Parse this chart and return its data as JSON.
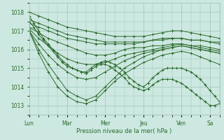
{
  "background_color": "#cce8e0",
  "grid_color": "#a0c4bc",
  "line_color": "#2d6a2d",
  "marker": "+",
  "markersize": 3,
  "linewidth": 0.7,
  "xlabel": "Pression niveau de la mer( hPa )",
  "ylim": [
    1012.5,
    1018.5
  ],
  "yticks": [
    1013,
    1014,
    1015,
    1016,
    1017,
    1018
  ],
  "xtick_labels": [
    "Lun",
    "Mar",
    "Mer",
    "Jeu",
    "Ven",
    "Sa"
  ],
  "xtick_positions": [
    0,
    24,
    48,
    72,
    96,
    114
  ],
  "total_hours": 120,
  "series": [
    {
      "x": [
        0,
        6,
        12,
        18,
        24,
        30,
        36,
        42,
        48,
        54,
        60,
        66,
        72,
        78,
        84,
        90,
        96,
        102,
        108,
        114,
        120
      ],
      "y": [
        1018.0,
        1017.8,
        1017.6,
        1017.4,
        1017.2,
        1017.1,
        1017.0,
        1016.9,
        1016.8,
        1016.7,
        1016.7,
        1016.7,
        1016.7,
        1016.8,
        1016.9,
        1017.0,
        1017.0,
        1016.9,
        1016.8,
        1016.7,
        1016.6
      ]
    },
    {
      "x": [
        0,
        6,
        12,
        18,
        24,
        30,
        36,
        42,
        48,
        54,
        60,
        66,
        72,
        78,
        84,
        90,
        96,
        102,
        108,
        114,
        120
      ],
      "y": [
        1017.6,
        1017.4,
        1017.2,
        1017.0,
        1016.8,
        1016.7,
        1016.6,
        1016.5,
        1016.4,
        1016.4,
        1016.4,
        1016.4,
        1016.4,
        1016.5,
        1016.6,
        1016.6,
        1016.6,
        1016.5,
        1016.5,
        1016.4,
        1016.4
      ]
    },
    {
      "x": [
        0,
        6,
        12,
        18,
        24,
        30,
        36,
        42,
        48,
        54,
        60,
        66,
        72,
        78,
        84,
        90,
        96,
        102,
        108,
        114,
        120
      ],
      "y": [
        1017.4,
        1017.2,
        1017.0,
        1016.8,
        1016.6,
        1016.5,
        1016.4,
        1016.3,
        1016.3,
        1016.3,
        1016.3,
        1016.3,
        1016.4,
        1016.5,
        1016.5,
        1016.6,
        1016.6,
        1016.5,
        1016.5,
        1016.4,
        1016.3
      ]
    },
    {
      "x": [
        0,
        6,
        12,
        18,
        24,
        30,
        36,
        42,
        48,
        54,
        60,
        66,
        72,
        78,
        84,
        90,
        96,
        102,
        108,
        114,
        120
      ],
      "y": [
        1017.2,
        1016.9,
        1016.6,
        1016.4,
        1016.2,
        1016.0,
        1015.8,
        1015.7,
        1015.7,
        1015.8,
        1016.0,
        1016.1,
        1016.1,
        1016.2,
        1016.2,
        1016.3,
        1016.3,
        1016.2,
        1016.2,
        1016.1,
        1016.0
      ]
    },
    {
      "x": [
        0,
        6,
        12,
        18,
        24,
        30,
        36,
        42,
        48,
        54,
        60,
        66,
        72,
        78,
        84,
        90,
        96,
        102,
        108,
        114,
        120
      ],
      "y": [
        1017.1,
        1016.6,
        1016.2,
        1015.8,
        1015.5,
        1015.3,
        1015.2,
        1015.2,
        1015.3,
        1015.5,
        1015.7,
        1015.8,
        1015.9,
        1016.0,
        1016.1,
        1016.2,
        1016.3,
        1016.2,
        1016.1,
        1016.0,
        1015.9
      ]
    },
    {
      "x": [
        0,
        6,
        12,
        18,
        24,
        30,
        36,
        42,
        48,
        54,
        60,
        66,
        72,
        78,
        84,
        90,
        96,
        102,
        108,
        114,
        120
      ],
      "y": [
        1017.0,
        1016.3,
        1015.7,
        1015.2,
        1014.8,
        1014.5,
        1014.4,
        1014.5,
        1014.8,
        1015.1,
        1015.4,
        1015.6,
        1015.8,
        1015.9,
        1016.0,
        1016.1,
        1016.2,
        1016.1,
        1016.0,
        1015.9,
        1015.8
      ]
    },
    {
      "x": [
        0,
        6,
        12,
        18,
        24,
        30,
        36,
        42,
        48,
        54,
        60,
        66,
        72,
        78,
        84,
        90,
        96,
        102,
        108,
        114,
        120
      ],
      "y": [
        1017.0,
        1016.0,
        1015.2,
        1014.5,
        1013.8,
        1013.5,
        1013.3,
        1013.5,
        1014.0,
        1014.5,
        1015.0,
        1015.3,
        1015.6,
        1015.8,
        1016.0,
        1016.1,
        1016.2,
        1016.1,
        1016.0,
        1015.9,
        1015.8
      ]
    },
    {
      "x": [
        0,
        6,
        12,
        18,
        24,
        30,
        36,
        42,
        48,
        54,
        60,
        66,
        72,
        78,
        84,
        90,
        96,
        102,
        108,
        114,
        120
      ],
      "y": [
        1017.0,
        1015.8,
        1014.8,
        1014.0,
        1013.5,
        1013.2,
        1013.1,
        1013.3,
        1013.8,
        1014.3,
        1014.7,
        1015.0,
        1015.3,
        1015.5,
        1015.7,
        1015.8,
        1015.9,
        1015.8,
        1015.6,
        1015.4,
        1015.2
      ]
    },
    {
      "x": [
        0,
        3,
        6,
        9,
        12,
        15,
        18,
        21,
        24,
        27,
        30,
        33,
        36,
        39,
        42,
        45,
        48,
        51,
        54,
        57,
        60,
        63,
        66,
        69,
        72,
        75,
        78,
        81,
        84,
        87,
        90,
        93,
        96,
        99,
        102,
        105,
        108,
        111,
        114,
        117,
        120
      ],
      "y": [
        1017.5,
        1017.2,
        1016.8,
        1016.5,
        1016.2,
        1015.9,
        1015.6,
        1015.3,
        1015.1,
        1015.0,
        1014.9,
        1014.8,
        1014.8,
        1015.0,
        1015.2,
        1015.3,
        1015.4,
        1015.3,
        1015.2,
        1015.0,
        1014.8,
        1014.5,
        1014.3,
        1014.1,
        1014.0,
        1014.2,
        1014.5,
        1014.7,
        1014.9,
        1015.0,
        1015.0,
        1015.0,
        1015.0,
        1014.9,
        1014.8,
        1014.6,
        1014.4,
        1014.1,
        1013.8,
        1013.5,
        1013.2
      ]
    },
    {
      "x": [
        0,
        3,
        6,
        9,
        12,
        15,
        18,
        21,
        24,
        27,
        30,
        33,
        36,
        39,
        42,
        45,
        48,
        51,
        54,
        57,
        60,
        63,
        66,
        69,
        72,
        75,
        78,
        81,
        84,
        87,
        90,
        93,
        96,
        99,
        102,
        105,
        108,
        111,
        114,
        117,
        120
      ],
      "y": [
        1017.8,
        1017.4,
        1017.0,
        1016.6,
        1016.3,
        1016.0,
        1015.7,
        1015.4,
        1015.2,
        1015.0,
        1014.9,
        1014.8,
        1014.7,
        1014.9,
        1015.1,
        1015.2,
        1015.2,
        1015.1,
        1014.9,
        1014.7,
        1014.5,
        1014.2,
        1014.0,
        1013.9,
        1013.8,
        1013.9,
        1014.1,
        1014.3,
        1014.4,
        1014.4,
        1014.4,
        1014.3,
        1014.2,
        1014.0,
        1013.8,
        1013.6,
        1013.4,
        1013.2,
        1013.0,
        1013.0,
        1013.1
      ]
    }
  ]
}
